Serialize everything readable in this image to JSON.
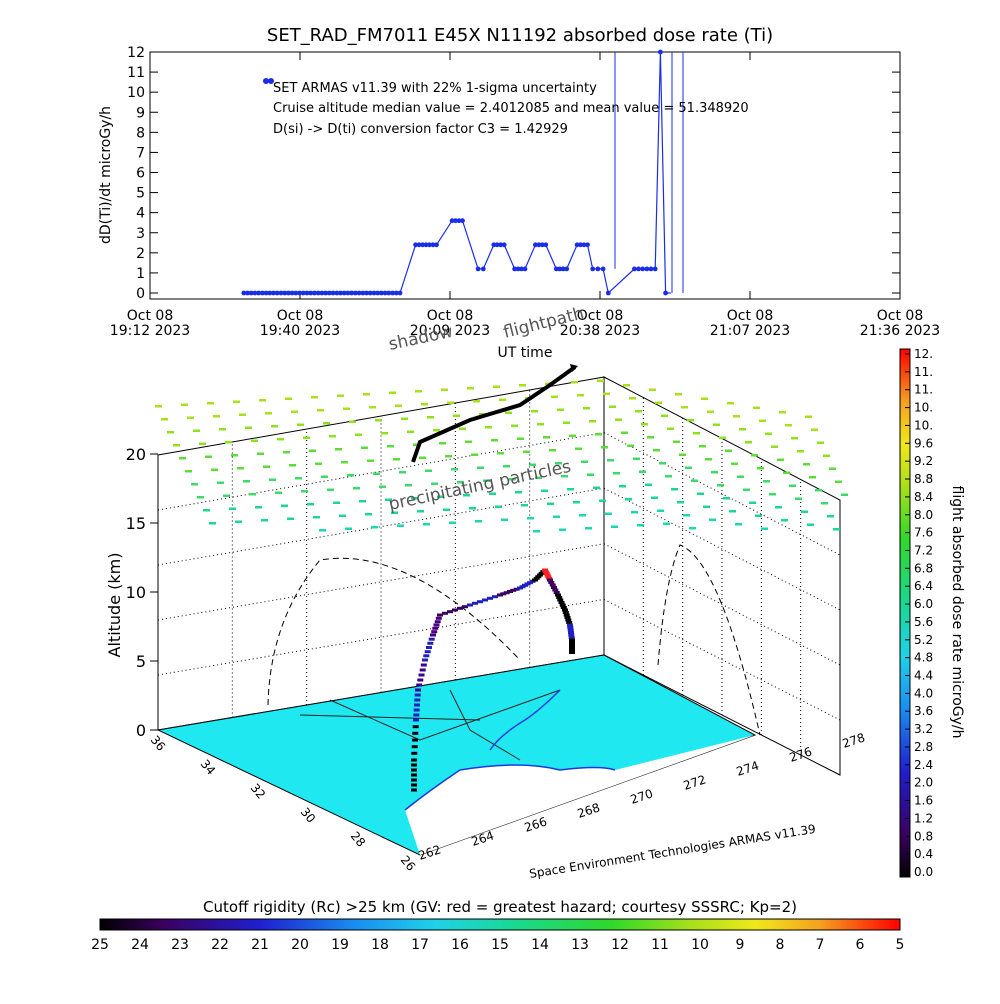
{
  "title": "SET_RAD_FM7011   E45X N11192 absorbed dose rate (Ti)",
  "timeseries": {
    "ylabel": "dD(Ti)/dt microGy/h",
    "yticks": [
      "0",
      "1",
      "2",
      "3",
      "4",
      "5",
      "6",
      "7",
      "8",
      "9",
      "10",
      "11",
      "12"
    ],
    "xticks": [
      {
        "l1": "Oct 08",
        "l2": "19:12 2023"
      },
      {
        "l1": "Oct 08",
        "l2": "19:40 2023"
      },
      {
        "l1": "Oct 08",
        "l2": "20:09 2023"
      },
      {
        "l1": "Oct 08",
        "l2": "20:38 2023"
      },
      {
        "l1": "Oct 08",
        "l2": "21:07 2023"
      },
      {
        "l1": "Oct 08",
        "l2": "21:36 2023"
      }
    ],
    "xlabel": "UT time",
    "annotations": [
      "SET ARMAS v11.39 with 22% 1-sigma uncertainty",
      "Cruise altitude median value = 2.4012085 and mean value = 51.348920",
      "D(si) -> D(ti) conversion factor C3 = 1.42929"
    ]
  },
  "globe": {
    "shadow_label": "shadow",
    "flightpath_label": "flightpath",
    "precip_label": "precipitating particles",
    "alt_label": "Altitude (km)",
    "alt_ticks": [
      "0",
      "5",
      "10",
      "15",
      "20"
    ],
    "lat_ticks": [
      "36",
      "34",
      "32",
      "30",
      "28",
      "26"
    ],
    "lon_ticks": [
      "262",
      "264",
      "266",
      "268",
      "270",
      "272",
      "274",
      "276",
      "278"
    ],
    "credit": "Space Environment Technologies ARMAS v11.39"
  },
  "right_colorbar": {
    "label": "flight absorbed dose rate microGy/h",
    "ticks": [
      "12.",
      "11.",
      "11.",
      "10.",
      "10.",
      "9.6",
      "9.2",
      "8.8",
      "8.4",
      "8.0",
      "7.6",
      "7.2",
      "6.8",
      "6.4",
      "6.0",
      "5.6",
      "5.2",
      "4.8",
      "4.4",
      "4.0",
      "3.6",
      "3.2",
      "2.8",
      "2.4",
      "2.0",
      "1.6",
      "1.2",
      "0.8",
      "0.4",
      "0.0"
    ]
  },
  "bottom_colorbar": {
    "title": "Cutoff rigidity (Rc) >25 km (GV: red = greatest hazard; courtesy SSSRC; Kp=2)",
    "ticks": [
      "25",
      "24",
      "23",
      "22",
      "21",
      "20",
      "19",
      "18",
      "17",
      "16",
      "15",
      "14",
      "13",
      "12",
      "11",
      "10",
      "9",
      "8",
      "7",
      "6",
      "5"
    ]
  },
  "chart_data": [
    {
      "type": "line",
      "title": "SET_RAD_FM7011   E45X N11192 absorbed dose rate (Ti)",
      "xlabel": "UT time",
      "ylabel": "dD(Ti)/dt microGy/h",
      "ylim": [
        0,
        12
      ],
      "xlim": [
        "19:12",
        "21:36"
      ],
      "series": [
        {
          "x": [
            "19:30",
            "19:35",
            "19:40",
            "19:45",
            "19:50",
            "19:55",
            "20:00",
            "20:03",
            "20:05",
            "20:07",
            "20:10",
            "20:12",
            "20:15",
            "20:16",
            "20:18",
            "20:20",
            "20:22",
            "20:24",
            "20:26",
            "20:28",
            "20:30",
            "20:32",
            "20:34",
            "20:36",
            "20:37",
            "20:38",
            "20:39",
            "20:40",
            "20:45",
            "20:49",
            "20:50",
            "20:51",
            "20:52"
          ],
          "values": [
            0,
            0,
            0,
            0,
            0,
            0,
            0,
            2.4,
            2.4,
            2.4,
            3.6,
            3.6,
            1.2,
            1.2,
            2.4,
            2.4,
            1.2,
            1.2,
            2.4,
            2.4,
            1.2,
            1.2,
            2.4,
            2.4,
            1.2,
            1.2,
            1.2,
            0,
            1.2,
            1.2,
            12,
            0,
            0
          ]
        }
      ]
    },
    {
      "type": "scatter",
      "xlabel": "",
      "ylabel": "Altitude (km)",
      "zlim": [
        0,
        20
      ],
      "series": [
        {
          "values": [
            0,
            1,
            2,
            3,
            4,
            5,
            6,
            7,
            8,
            9,
            10,
            11,
            12,
            11,
            10,
            9,
            8,
            7,
            6,
            5
          ]
        }
      ]
    }
  ]
}
